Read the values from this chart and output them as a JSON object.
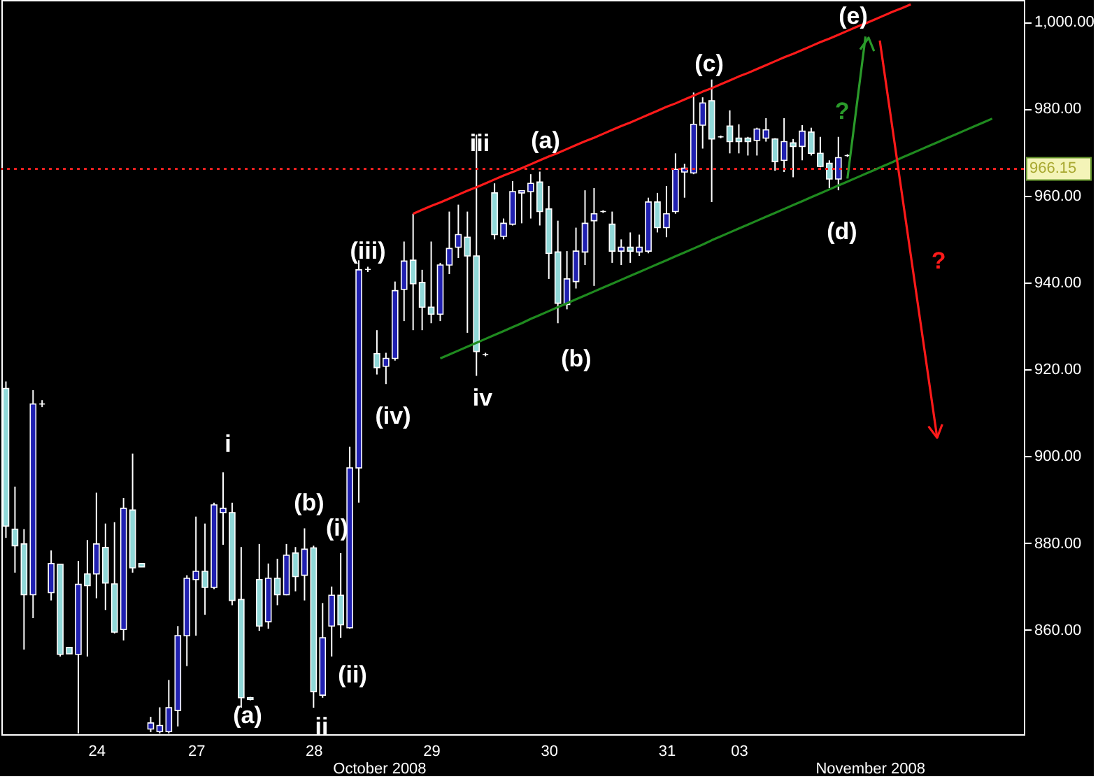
{
  "chart_data": {
    "type": "candlestick",
    "categories": [
      null,
      null,
      null,
      null,
      null,
      null,
      null,
      null,
      null,
      null,
      "24",
      null,
      null,
      null,
      null,
      null,
      null,
      null,
      null,
      null,
      null,
      "27",
      null,
      null,
      null,
      null,
      null,
      null,
      null,
      null,
      null,
      null,
      null,
      null,
      "28",
      null,
      null,
      null,
      null,
      null,
      null,
      null,
      null,
      null,
      null,
      null,
      null,
      "29",
      null,
      null,
      null,
      null,
      null,
      null,
      null,
      null,
      null,
      null,
      null,
      null,
      "30",
      null,
      null,
      null,
      null,
      null,
      null,
      null,
      null,
      null,
      null,
      null,
      null,
      "31",
      null,
      null,
      null,
      null,
      null,
      null,
      null,
      "03",
      null,
      null,
      null,
      null,
      null,
      null,
      null,
      null,
      null,
      null,
      null,
      null,
      null,
      null,
      null,
      null,
      null,
      null,
      null,
      null,
      null,
      null,
      null,
      null,
      null,
      null,
      null,
      null,
      null,
      null,
      null
    ],
    "ohlc": [
      [
        915.6,
        917.2,
        881.2,
        883.9
      ],
      [
        883.2,
        893.0,
        873.2,
        879.4
      ],
      [
        879.8,
        883.2,
        855.5,
        868.1
      ],
      [
        868.1,
        915.2,
        862.7,
        912.0
      ],
      [
        912.0,
        912.9,
        911.3,
        912.0
      ],
      [
        868.6,
        878.3,
        866.8,
        875.3
      ],
      [
        875.1,
        875.1,
        853.9,
        854.4
      ],
      [
        856.0,
        856.0,
        854.5,
        854.5
      ],
      [
        854.4,
        875.9,
        836.2,
        870.5
      ],
      [
        872.9,
        880.7,
        853.9,
        870.2
      ],
      [
        872.9,
        891.6,
        867.3,
        879.8
      ],
      [
        879.0,
        884.5,
        864.6,
        870.8
      ],
      [
        870.6,
        884.8,
        859.2,
        859.5
      ],
      [
        860.1,
        890.4,
        857.6,
        888.0
      ],
      [
        887.6,
        900.6,
        873.2,
        874.3
      ],
      [
        875.3,
        875.3,
        874.5,
        874.5
      ],
      [
        837.2,
        840.0,
        836.5,
        838.6
      ],
      [
        836.6,
        842.2,
        836.2,
        838.0
      ],
      [
        836.6,
        848.5,
        836.2,
        842.1
      ],
      [
        841.5,
        860.9,
        837.8,
        858.7
      ],
      [
        858.7,
        872.6,
        851.7,
        871.9
      ],
      [
        871.6,
        886.1,
        858.7,
        873.5
      ],
      [
        873.5,
        884.5,
        863.5,
        869.8
      ],
      [
        869.8,
        889.3,
        869.4,
        888.8
      ],
      [
        887.0,
        896.3,
        879.6,
        888.0
      ],
      [
        887.0,
        889.3,
        865.7,
        866.8
      ],
      [
        867.0,
        879.1,
        842.1,
        844.4
      ],
      [
        844.4,
        844.6,
        843.8,
        844.0
      ],
      [
        871.6,
        879.8,
        859.8,
        860.9
      ],
      [
        861.9,
        875.3,
        860.3,
        871.9
      ],
      [
        871.9,
        876.4,
        865.7,
        868.1
      ],
      [
        868.1,
        879.8,
        868.0,
        877.2
      ],
      [
        877.7,
        879.1,
        868.9,
        872.3
      ],
      [
        872.6,
        883.4,
        866.8,
        878.6
      ],
      [
        878.9,
        879.4,
        842.1,
        845.8
      ],
      [
        845.0,
        866.2,
        844.4,
        858.2
      ],
      [
        860.9,
        870.0,
        853.9,
        868.0
      ],
      [
        868.0,
        877.7,
        858.2,
        861.2
      ],
      [
        860.5,
        902.2,
        860.3,
        897.3
      ],
      [
        897.3,
        945.1,
        889.3,
        942.9
      ],
      [
        943.0,
        943.6,
        942.4,
        943.0
      ],
      [
        923.6,
        929.0,
        918.8,
        920.4
      ],
      [
        920.7,
        923.8,
        916.6,
        922.5
      ],
      [
        922.5,
        940.2,
        922.0,
        938.1
      ],
      [
        938.4,
        949.4,
        931.1,
        944.9
      ],
      [
        945.1,
        955.8,
        929.0,
        939.7
      ],
      [
        940.0,
        942.9,
        929.0,
        934.3
      ],
      [
        934.3,
        949.4,
        930.6,
        932.7
      ],
      [
        932.7,
        944.5,
        931.1,
        944.0
      ],
      [
        944.0,
        956.3,
        941.9,
        947.8
      ],
      [
        948.1,
        957.9,
        945.6,
        951.0
      ],
      [
        950.4,
        956.3,
        928.4,
        946.1
      ],
      [
        946.1,
        974.0,
        918.5,
        924.1
      ],
      [
        923.4,
        923.8,
        923.0,
        923.4
      ],
      [
        960.6,
        962.8,
        949.9,
        951.0
      ],
      [
        950.6,
        954.7,
        949.9,
        953.6
      ],
      [
        953.4,
        963.3,
        953.1,
        960.9
      ],
      [
        960.6,
        961.2,
        953.6,
        961.1
      ],
      [
        960.9,
        964.9,
        954.7,
        962.8
      ],
      [
        963.1,
        965.5,
        953.1,
        956.3
      ],
      [
        956.9,
        962.2,
        940.8,
        946.7
      ],
      [
        947.0,
        954.2,
        930.6,
        935.2
      ],
      [
        934.9,
        947.2,
        933.8,
        940.8
      ],
      [
        940.2,
        952.6,
        938.6,
        947.2
      ],
      [
        947.0,
        961.2,
        944.0,
        953.6
      ],
      [
        954.2,
        961.7,
        939.2,
        955.8
      ],
      [
        956.3,
        956.6,
        956.0,
        956.3
      ],
      [
        953.4,
        956.3,
        944.5,
        947.2
      ],
      [
        947.2,
        949.9,
        944.0,
        948.1
      ],
      [
        948.1,
        951.5,
        944.5,
        947.2
      ],
      [
        947.0,
        951.0,
        946.1,
        948.1
      ],
      [
        947.2,
        959.5,
        946.7,
        958.5
      ],
      [
        958.5,
        960.6,
        951.5,
        952.6
      ],
      [
        952.6,
        962.2,
        950.4,
        955.8
      ],
      [
        956.3,
        969.7,
        955.8,
        966.0
      ],
      [
        965.4,
        967.3,
        959.5,
        966.3
      ],
      [
        965.2,
        983.7,
        964.9,
        976.4
      ],
      [
        976.2,
        982.6,
        970.8,
        981.3
      ],
      [
        981.8,
        986.7,
        958.5,
        973.0
      ],
      [
        973.5,
        973.8,
        973.2,
        973.5
      ],
      [
        976.0,
        979.6,
        969.7,
        972.4
      ],
      [
        973.2,
        976.4,
        969.7,
        972.4
      ],
      [
        973.2,
        973.5,
        969.2,
        972.4
      ],
      [
        972.7,
        975.6,
        969.2,
        975.3
      ],
      [
        973.2,
        977.8,
        972.4,
        975.1
      ],
      [
        973.0,
        973.2,
        965.7,
        967.8
      ],
      [
        968.1,
        977.8,
        965.4,
        972.4
      ],
      [
        972.1,
        973.0,
        964.2,
        971.3
      ],
      [
        971.3,
        976.2,
        968.1,
        974.8
      ],
      [
        974.6,
        975.6,
        969.2,
        969.7
      ],
      [
        969.7,
        973.5,
        966.5,
        966.7
      ],
      [
        967.4,
        968.1,
        961.7,
        963.8
      ],
      [
        963.8,
        973.5,
        961.2,
        968.7
      ],
      [
        969.2,
        969.5,
        968.9,
        969.2
      ],
      null,
      null,
      null,
      null,
      null,
      null,
      null,
      null,
      null,
      null,
      null,
      null,
      null,
      null,
      null,
      null,
      null,
      null,
      null
    ],
    "colors": [
      "#90d8d8",
      "#90d8d8",
      "#90d8d8",
      "#2020b0",
      "#ffffff",
      "#2020b0",
      "#90d8d8",
      "#90d8d8",
      "#2020b0",
      "#90d8d8",
      "#2020b0",
      "#90d8d8",
      "#90d8d8",
      "#2020b0",
      "#90d8d8",
      "#90d8d8",
      "#2020b0",
      "#2020b0",
      "#2020b0",
      "#2020b0",
      "#2020b0",
      "#2020b0",
      "#90d8d8",
      "#2020b0",
      "#2020b0",
      "#90d8d8",
      "#90d8d8",
      "#90d8d8",
      "#90d8d8",
      "#2020b0",
      "#90d8d8",
      "#2020b0",
      "#90d8d8",
      "#2020b0",
      "#90d8d8",
      "#2020b0",
      "#2020b0",
      "#90d8d8",
      "#2020b0",
      "#2020b0",
      "#ffffff",
      "#90d8d8",
      "#2020b0",
      "#2020b0",
      "#2020b0",
      "#90d8d8",
      "#90d8d8",
      "#90d8d8",
      "#2020b0",
      "#2020b0",
      "#2020b0",
      "#90d8d8",
      "#90d8d8",
      "#ffffff",
      "#90d8d8",
      "#2020b0",
      "#2020b0",
      "#2020b0",
      "#2020b0",
      "#90d8d8",
      "#90d8d8",
      "#90d8d8",
      "#2020b0",
      "#2020b0",
      "#2020b0",
      "#2020b0",
      "#ffffff",
      "#90d8d8",
      "#2020b0",
      "#90d8d8",
      "#2020b0",
      "#2020b0",
      "#90d8d8",
      "#2020b0",
      "#2020b0",
      "#2020b0",
      "#2020b0",
      "#2020b0",
      "#90d8d8",
      "#ffffff",
      "#90d8d8",
      "#90d8d8",
      "#90d8d8",
      "#2020b0",
      "#2020b0",
      "#90d8d8",
      "#2020b0",
      "#90d8d8",
      "#2020b0",
      "#90d8d8",
      "#90d8d8",
      "#90d8d8",
      "#2020b0",
      "#ffffff",
      null,
      null,
      null,
      null,
      null,
      null,
      null,
      null,
      null,
      null,
      null,
      null,
      null,
      null,
      null,
      null,
      null,
      null,
      null
    ],
    "series": [
      {
        "type": "line",
        "color": "#ff1a1a",
        "line_style": "solid",
        "values": [
          null,
          null,
          null,
          null,
          null,
          null,
          null,
          null,
          null,
          null,
          null,
          null,
          null,
          null,
          null,
          null,
          null,
          null,
          null,
          null,
          null,
          null,
          null,
          null,
          null,
          null,
          null,
          null,
          null,
          null,
          null,
          null,
          null,
          null,
          null,
          null,
          null,
          null,
          null,
          null,
          null,
          null,
          null,
          null,
          null,
          955.8,
          956.7,
          957.6,
          958.4,
          959.3,
          960.2,
          961.1,
          961.9,
          962.8,
          963.7,
          964.6,
          965.4,
          966.3,
          967.2,
          968.1,
          969.0,
          969.8,
          970.7,
          971.6,
          972.5,
          973.3,
          974.2,
          975.1,
          976.0,
          976.8,
          977.7,
          978.6,
          979.5,
          980.4,
          981.2,
          982.1,
          983.0,
          983.9,
          984.7,
          985.6,
          986.5,
          987.4,
          988.2,
          989.1,
          990.0,
          990.9,
          991.8,
          992.6,
          993.5,
          994.4,
          995.3,
          996.1,
          997.0,
          997.9,
          998.8,
          999.6,
          1000.5,
          1001.4,
          1002.3,
          1003.1,
          1004.0,
          null,
          null,
          null,
          null,
          null,
          null,
          null,
          null,
          null,
          null,
          null,
          null
        ]
      },
      {
        "type": "line",
        "color": "#1f8a1f",
        "line_style": "solid",
        "values": [
          null,
          null,
          null,
          null,
          null,
          null,
          null,
          null,
          null,
          null,
          null,
          null,
          null,
          null,
          null,
          null,
          null,
          null,
          null,
          null,
          null,
          null,
          null,
          null,
          null,
          null,
          null,
          null,
          null,
          null,
          null,
          null,
          null,
          null,
          null,
          null,
          null,
          null,
          null,
          null,
          null,
          null,
          null,
          null,
          null,
          null,
          null,
          null,
          922.5,
          923.4,
          924.3,
          925.2,
          926.1,
          927.0,
          927.9,
          928.8,
          929.7,
          930.6,
          931.6,
          932.5,
          933.4,
          934.3,
          935.2,
          936.1,
          937.0,
          937.9,
          938.8,
          939.7,
          940.6,
          941.5,
          942.4,
          943.3,
          944.2,
          945.1,
          946.0,
          946.9,
          947.8,
          948.7,
          949.7,
          950.6,
          951.5,
          952.4,
          953.3,
          954.2,
          955.1,
          956.0,
          956.9,
          957.8,
          958.7,
          959.6,
          960.5,
          961.4,
          962.3,
          963.2,
          964.1,
          965.0,
          965.9,
          966.8,
          967.7,
          968.7,
          969.6,
          970.5,
          971.4,
          972.3,
          973.2,
          974.1,
          975.0,
          975.9,
          976.8,
          977.7,
          null,
          null,
          null
        ]
      },
      {
        "type": "line",
        "color": "#2a9a2a",
        "line_style": "solid",
        "values": [
          null,
          null,
          null,
          null,
          null,
          null,
          null,
          null,
          null,
          null,
          null,
          null,
          null,
          null,
          null,
          null,
          null,
          null,
          null,
          null,
          null,
          null,
          null,
          null,
          null,
          null,
          null,
          null,
          null,
          null,
          null,
          null,
          null,
          null,
          null,
          null,
          null,
          null,
          null,
          null,
          null,
          null,
          null,
          null,
          null,
          null,
          null,
          null,
          null,
          null,
          null,
          null,
          null,
          null,
          null,
          null,
          null,
          null,
          null,
          null,
          null,
          null,
          null,
          null,
          null,
          null,
          null,
          null,
          null,
          null,
          null,
          null,
          null,
          null,
          null,
          null,
          null,
          null,
          null,
          null,
          null,
          null,
          null,
          null,
          null,
          null,
          null,
          null,
          null,
          null,
          null,
          null,
          null,
          963.9,
          980.3,
          996.6,
          null,
          null,
          null,
          null,
          null,
          null,
          null,
          null,
          null,
          null,
          null,
          null,
          null,
          null,
          null,
          null,
          null
        ]
      }
    ],
    "ref_lines": [
      {
        "axis": "y",
        "value": 966.15,
        "label": "966.15",
        "color": "#ff2020",
        "line_style": "dotted"
      }
    ],
    "annotations": [
      "i",
      "(a)",
      "ii",
      "(b)",
      "(i)",
      "(ii)",
      "(iii)",
      "(iv)",
      "iii",
      "iv",
      "(a)",
      "(b)",
      "(c)",
      "(d)",
      "(e)",
      "?",
      "?",
      "October 2008",
      "November 2008"
    ],
    "ylim": [
      836,
      1005
    ],
    "yticks": [
      {
        "value": 860,
        "label": "860.00"
      },
      {
        "value": 880,
        "label": "880.00"
      },
      {
        "value": 900,
        "label": "900.00"
      },
      {
        "value": 920,
        "label": "920.00"
      },
      {
        "value": 940,
        "label": "940.00"
      },
      {
        "value": 960,
        "label": "960.00"
      },
      {
        "value": 980,
        "label": "980.00"
      },
      {
        "value": 1000,
        "label": "1,000.00"
      }
    ],
    "grid": false
  }
}
